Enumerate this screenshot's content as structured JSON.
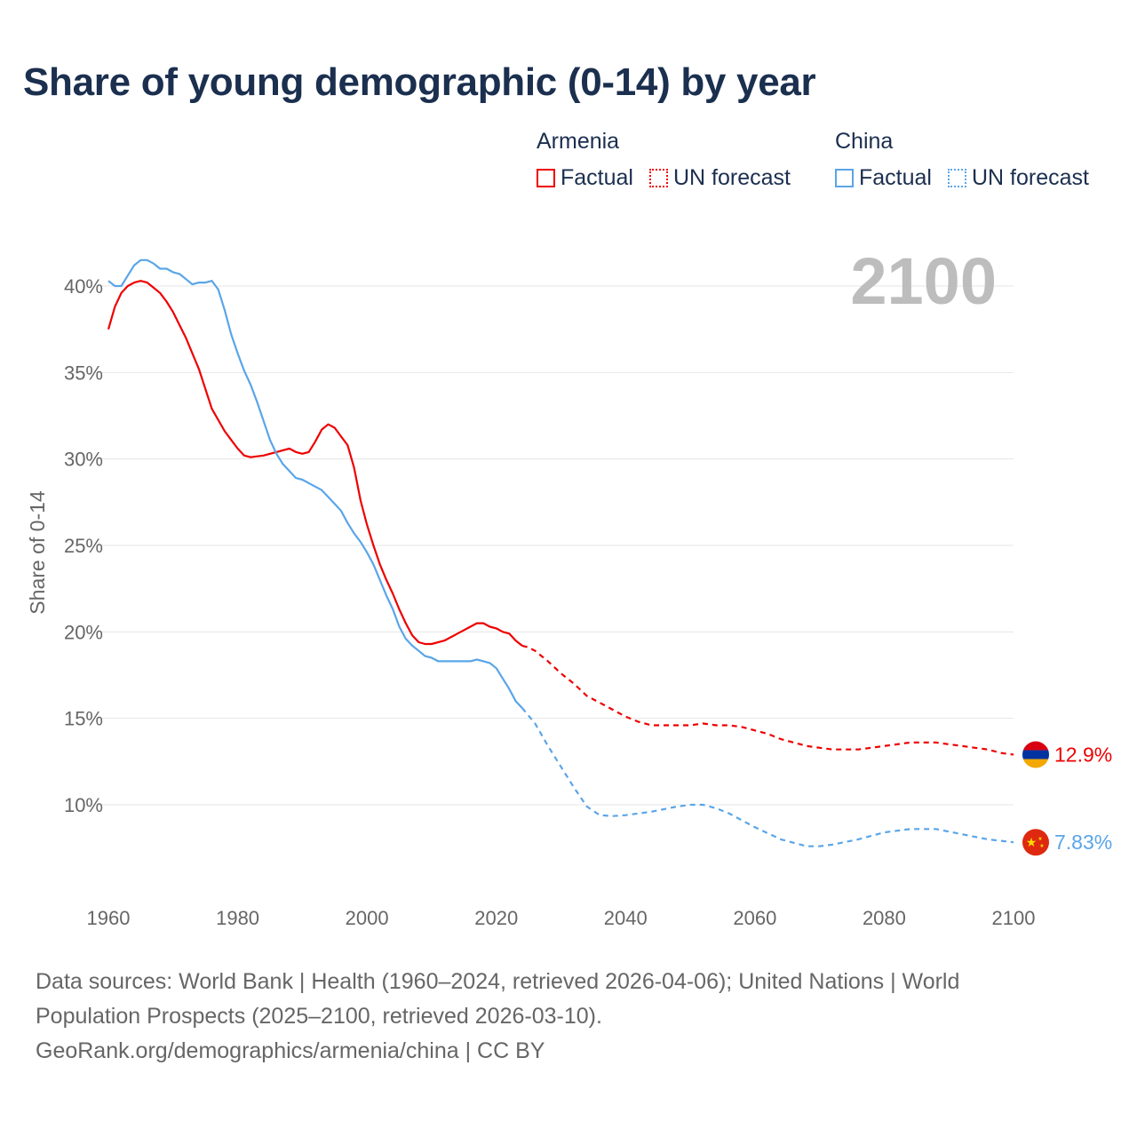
{
  "chart_data": {
    "type": "line",
    "title": "Share of young demographic (0-14) by year",
    "ylabel": "Share of 0-14",
    "xlabel": "",
    "xlim": [
      1960,
      2100
    ],
    "ylim": [
      5,
      42
    ],
    "x_ticks": [
      1960,
      1980,
      2000,
      2020,
      2040,
      2060,
      2080,
      2100
    ],
    "x_tick_labels": [
      "1960",
      "1980",
      "2000",
      "2020",
      "2040",
      "2060",
      "2080",
      "2100"
    ],
    "y_ticks": [
      10,
      15,
      20,
      25,
      30,
      35,
      40
    ],
    "y_tick_labels": [
      "10%",
      "15%",
      "20%",
      "25%",
      "30%",
      "35%",
      "40%"
    ],
    "grid": true,
    "year_watermark": "2100",
    "legend_placement": "top-right",
    "series": [
      {
        "name": "Armenia",
        "color": "#ee0000",
        "end_label": "12.9%",
        "factual_label": "Factual",
        "forecast_label": "UN forecast",
        "factual": {
          "x": [
            1960,
            1961,
            1962,
            1963,
            1964,
            1965,
            1966,
            1967,
            1968,
            1969,
            1970,
            1972,
            1974,
            1976,
            1978,
            1979,
            1980,
            1981,
            1982,
            1984,
            1986,
            1988,
            1989,
            1990,
            1991,
            1992,
            1993,
            1994,
            1995,
            1996,
            1997,
            1998,
            1999,
            2000,
            2001,
            2002,
            2003,
            2004,
            2005,
            2006,
            2007,
            2008,
            2009,
            2010,
            2012,
            2014,
            2016,
            2017,
            2018,
            2019,
            2020,
            2021,
            2022,
            2023,
            2024
          ],
          "y": [
            37.5,
            38.8,
            39.6,
            40.0,
            40.2,
            40.3,
            40.2,
            39.9,
            39.6,
            39.1,
            38.5,
            37.0,
            35.2,
            32.9,
            31.6,
            31.1,
            30.6,
            30.2,
            30.1,
            30.2,
            30.4,
            30.6,
            30.4,
            30.3,
            30.4,
            31.0,
            31.7,
            32.0,
            31.8,
            31.3,
            30.8,
            29.5,
            27.6,
            26.2,
            25.0,
            23.9,
            23.0,
            22.2,
            21.3,
            20.5,
            19.8,
            19.4,
            19.3,
            19.3,
            19.5,
            19.9,
            20.3,
            20.5,
            20.5,
            20.3,
            20.2,
            20.0,
            19.9,
            19.5,
            19.2
          ]
        },
        "forecast": {
          "x": [
            2024,
            2025,
            2026,
            2028,
            2030,
            2032,
            2034,
            2036,
            2038,
            2040,
            2042,
            2044,
            2046,
            2048,
            2050,
            2052,
            2054,
            2056,
            2058,
            2060,
            2062,
            2064,
            2066,
            2068,
            2070,
            2072,
            2074,
            2076,
            2078,
            2080,
            2082,
            2084,
            2086,
            2088,
            2090,
            2092,
            2094,
            2096,
            2098,
            2100
          ],
          "y": [
            19.2,
            19.1,
            18.9,
            18.3,
            17.6,
            17.0,
            16.3,
            15.9,
            15.5,
            15.1,
            14.8,
            14.6,
            14.6,
            14.6,
            14.6,
            14.7,
            14.6,
            14.6,
            14.5,
            14.3,
            14.1,
            13.8,
            13.6,
            13.4,
            13.3,
            13.2,
            13.2,
            13.2,
            13.3,
            13.4,
            13.5,
            13.6,
            13.6,
            13.6,
            13.5,
            13.4,
            13.3,
            13.2,
            13.0,
            12.9
          ]
        }
      },
      {
        "name": "China",
        "color": "#5aa5e8",
        "end_label": "7.83%",
        "factual_label": "Factual",
        "forecast_label": "UN forecast",
        "factual": {
          "x": [
            1960,
            1961,
            1962,
            1963,
            1964,
            1965,
            1966,
            1967,
            1968,
            1969,
            1970,
            1971,
            1972,
            1973,
            1974,
            1975,
            1976,
            1977,
            1978,
            1979,
            1980,
            1981,
            1982,
            1983,
            1984,
            1985,
            1986,
            1987,
            1988,
            1989,
            1990,
            1992,
            1993,
            1994,
            1995,
            1996,
            1997,
            1998,
            1999,
            2000,
            2001,
            2002,
            2003,
            2004,
            2005,
            2006,
            2007,
            2008,
            2009,
            2010,
            2011,
            2012,
            2014,
            2016,
            2017,
            2018,
            2019,
            2020,
            2021,
            2022,
            2023,
            2024
          ],
          "y": [
            40.3,
            40.0,
            40.0,
            40.6,
            41.2,
            41.5,
            41.5,
            41.3,
            41.0,
            41.0,
            40.8,
            40.7,
            40.4,
            40.1,
            40.2,
            40.2,
            40.3,
            39.8,
            38.6,
            37.2,
            36.1,
            35.1,
            34.3,
            33.3,
            32.2,
            31.1,
            30.3,
            29.7,
            29.3,
            28.9,
            28.8,
            28.4,
            28.2,
            27.8,
            27.4,
            27.0,
            26.3,
            25.7,
            25.2,
            24.6,
            23.9,
            23.0,
            22.1,
            21.3,
            20.3,
            19.6,
            19.2,
            18.9,
            18.6,
            18.5,
            18.3,
            18.3,
            18.3,
            18.3,
            18.4,
            18.3,
            18.2,
            17.9,
            17.3,
            16.7,
            16.0,
            15.6
          ]
        },
        "forecast": {
          "x": [
            2024,
            2026,
            2028,
            2030,
            2032,
            2034,
            2036,
            2038,
            2040,
            2044,
            2048,
            2050,
            2052,
            2054,
            2056,
            2058,
            2060,
            2064,
            2068,
            2070,
            2072,
            2076,
            2080,
            2084,
            2088,
            2092,
            2096,
            2100
          ],
          "y": [
            15.6,
            14.7,
            13.4,
            12.2,
            11.0,
            9.9,
            9.4,
            9.35,
            9.4,
            9.6,
            9.9,
            10.0,
            10.0,
            9.8,
            9.5,
            9.1,
            8.7,
            8.0,
            7.6,
            7.6,
            7.7,
            8.0,
            8.4,
            8.6,
            8.6,
            8.3,
            8.0,
            7.83
          ]
        }
      }
    ]
  },
  "footer": {
    "sources": "Data sources: World Bank | Health (1960–2024, retrieved 2026-04-06); United Nations | World Population Prospects (2025–2100, retrieved 2026-03-10).",
    "credit": "GeoRank.org/demographics/armenia/china | CC BY"
  }
}
